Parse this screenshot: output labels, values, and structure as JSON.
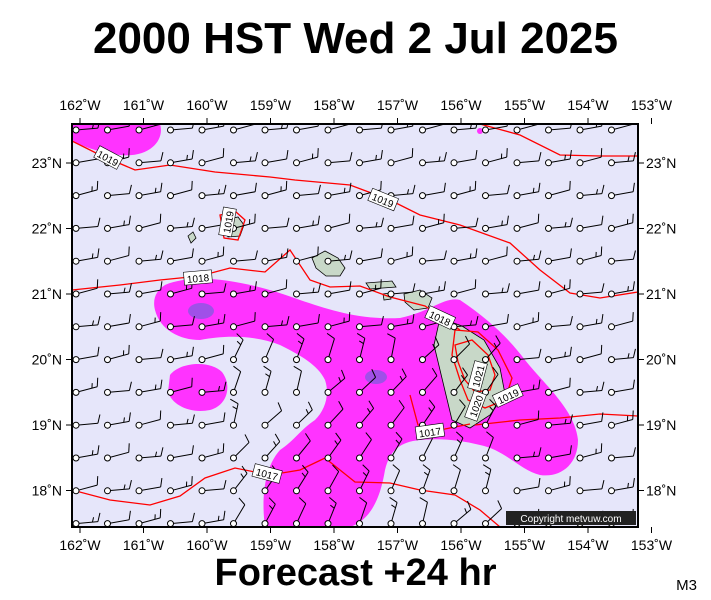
{
  "title": "2000 HST Wed 2 Jul 2025",
  "footer": "Forecast +24 hr",
  "model": "M3",
  "copyright": "Copyright metvuw.com",
  "axes": {
    "lon_ticks": [
      "162˚W",
      "161˚W",
      "160˚W",
      "159˚W",
      "158˚W",
      "157˚W",
      "156˚W",
      "155˚W",
      "154˚W",
      "153˚W"
    ],
    "lat_ticks": [
      "23˚N",
      "22˚N",
      "21˚N",
      "20˚N",
      "19˚N",
      "18˚N"
    ]
  },
  "isobar_labels": [
    "1019",
    "1019",
    "1019",
    "1018",
    "1018",
    "1017",
    "1017",
    "1021",
    "1020",
    "1019",
    "1018"
  ],
  "colors": {
    "ocean": "#e6e6fa",
    "precip_light": "#ff33ff",
    "precip_medium": "#c000e0",
    "precip_heavy": "#a060e0",
    "isobar": "#ff0000",
    "land": "#c8d8c8"
  }
}
